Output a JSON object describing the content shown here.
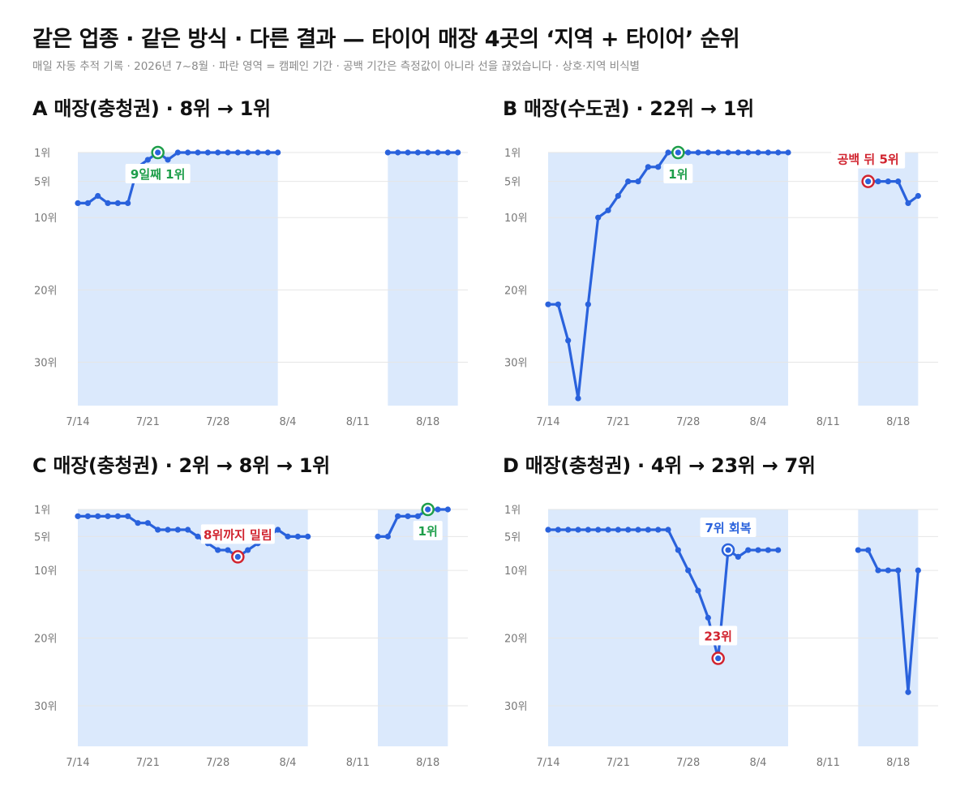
{
  "header": {
    "title": "같은 업종 · 같은 방식 · 다른 결과 — 타이어 매장 4곳의 ‘지역 + 타이어’ 순위",
    "subtitle": "매일 자동 추적 기록 · 2026년 7~8월 · 파란 영역 = 캠페인 기간 · 공백 기간은 측정값이 아니라 선을 끊었습니다 · 상호·지역 비식별"
  },
  "colors": {
    "line": "#2a62dc",
    "campaign": "#dbe9fc",
    "good": "#1e9e4a",
    "bad": "#d1242f",
    "text": "#111111",
    "axis": "#777777"
  },
  "chart_data": [
    {
      "type": "line",
      "title": "A 매장(충청권) · 8위 → 1위",
      "x_ticks": [
        "7/14",
        "7/21",
        "7/28",
        "8/4",
        "8/11",
        "8/18"
      ],
      "y_ticks": [
        "1위",
        "5위",
        "10위",
        "20위",
        "30위"
      ],
      "y_tick_values": [
        1,
        5,
        10,
        20,
        30
      ],
      "y_range": [
        1,
        36
      ],
      "x_range": [
        "7/14",
        "8/22"
      ],
      "campaign_periods": [
        [
          "7/14",
          "8/3"
        ],
        [
          "8/14",
          "8/21"
        ]
      ],
      "segments": [
        [
          [
            "7/14",
            8
          ],
          [
            "7/15",
            8
          ],
          [
            "7/16",
            7
          ],
          [
            "7/17",
            8
          ],
          [
            "7/18",
            8
          ],
          [
            "7/19",
            8
          ],
          [
            "7/20",
            3
          ],
          [
            "7/21",
            2
          ],
          [
            "7/22",
            1
          ],
          [
            "7/23",
            2
          ],
          [
            "7/24",
            1
          ],
          [
            "7/25",
            1
          ],
          [
            "7/26",
            1
          ],
          [
            "7/27",
            1
          ],
          [
            "7/28",
            1
          ],
          [
            "7/29",
            1
          ],
          [
            "7/30",
            1
          ],
          [
            "7/31",
            1
          ],
          [
            "8/1",
            1
          ],
          [
            "8/2",
            1
          ],
          [
            "8/3",
            1
          ]
        ],
        [
          [
            "8/14",
            1
          ],
          [
            "8/15",
            1
          ],
          [
            "8/16",
            1
          ],
          [
            "8/17",
            1
          ],
          [
            "8/18",
            1
          ],
          [
            "8/19",
            1
          ],
          [
            "8/20",
            1
          ],
          [
            "8/21",
            1
          ]
        ]
      ],
      "annotations": [
        {
          "x": "7/22",
          "y": 1,
          "text": "9일째 1위",
          "tone": "good",
          "label_pos": "below"
        }
      ]
    },
    {
      "type": "line",
      "title": "B 매장(수도권) · 22위 → 1위",
      "x_ticks": [
        "7/14",
        "7/21",
        "7/28",
        "8/4",
        "8/11",
        "8/18"
      ],
      "y_ticks": [
        "1위",
        "5위",
        "10위",
        "20위",
        "30위"
      ],
      "y_tick_values": [
        1,
        5,
        10,
        20,
        30
      ],
      "y_range": [
        1,
        36
      ],
      "x_range": [
        "7/14",
        "8/22"
      ],
      "campaign_periods": [
        [
          "7/14",
          "8/7"
        ],
        [
          "8/14",
          "8/20"
        ]
      ],
      "segments": [
        [
          [
            "7/14",
            22
          ],
          [
            "7/15",
            22
          ],
          [
            "7/16",
            27
          ],
          [
            "7/17",
            35
          ],
          [
            "7/18",
            22
          ],
          [
            "7/19",
            10
          ],
          [
            "7/20",
            9
          ],
          [
            "7/21",
            7
          ],
          [
            "7/22",
            5
          ],
          [
            "7/23",
            5
          ],
          [
            "7/24",
            3
          ],
          [
            "7/25",
            3
          ],
          [
            "7/26",
            1
          ],
          [
            "7/27",
            1
          ],
          [
            "7/28",
            1
          ],
          [
            "7/29",
            1
          ],
          [
            "7/30",
            1
          ],
          [
            "7/31",
            1
          ],
          [
            "8/1",
            1
          ],
          [
            "8/2",
            1
          ],
          [
            "8/3",
            1
          ],
          [
            "8/4",
            1
          ],
          [
            "8/5",
            1
          ],
          [
            "8/6",
            1
          ],
          [
            "8/7",
            1
          ]
        ],
        [
          [
            "8/15",
            5
          ],
          [
            "8/16",
            5
          ],
          [
            "8/17",
            5
          ],
          [
            "8/18",
            5
          ],
          [
            "8/19",
            8
          ],
          [
            "8/20",
            7
          ]
        ]
      ],
      "annotations": [
        {
          "x": "7/27",
          "y": 1,
          "text": "1위",
          "tone": "good",
          "label_pos": "below"
        },
        {
          "x": "8/15",
          "y": 5,
          "text": "공백 뒤 5위",
          "tone": "bad",
          "label_pos": "above"
        }
      ]
    },
    {
      "type": "line",
      "title": "C 매장(충청권) · 2위 → 8위 → 1위",
      "x_ticks": [
        "7/14",
        "7/21",
        "7/28",
        "8/4",
        "8/11",
        "8/18"
      ],
      "y_ticks": [
        "1위",
        "5위",
        "10위",
        "20위",
        "30위"
      ],
      "y_tick_values": [
        1,
        5,
        10,
        20,
        30
      ],
      "y_range": [
        1,
        36
      ],
      "x_range": [
        "7/14",
        "8/22"
      ],
      "campaign_periods": [
        [
          "7/14",
          "8/6"
        ],
        [
          "8/13",
          "8/20"
        ]
      ],
      "segments": [
        [
          [
            "7/14",
            2
          ],
          [
            "7/15",
            2
          ],
          [
            "7/16",
            2
          ],
          [
            "7/17",
            2
          ],
          [
            "7/18",
            2
          ],
          [
            "7/19",
            2
          ],
          [
            "7/20",
            3
          ],
          [
            "7/21",
            3
          ],
          [
            "7/22",
            4
          ],
          [
            "7/23",
            4
          ],
          [
            "7/24",
            4
          ],
          [
            "7/25",
            4
          ],
          [
            "7/26",
            5
          ],
          [
            "7/27",
            6
          ],
          [
            "7/28",
            7
          ],
          [
            "7/29",
            7
          ],
          [
            "7/30",
            8
          ],
          [
            "7/31",
            7
          ],
          [
            "8/1",
            6
          ],
          [
            "8/2",
            5
          ],
          [
            "8/3",
            4
          ],
          [
            "8/4",
            5
          ],
          [
            "8/5",
            5
          ],
          [
            "8/6",
            5
          ]
        ],
        [
          [
            "8/13",
            5
          ],
          [
            "8/14",
            5
          ],
          [
            "8/15",
            2
          ],
          [
            "8/16",
            2
          ],
          [
            "8/17",
            2
          ],
          [
            "8/18",
            1
          ],
          [
            "8/19",
            1
          ],
          [
            "8/20",
            1
          ]
        ]
      ],
      "annotations": [
        {
          "x": "7/30",
          "y": 8,
          "text": "8위까지 밀림",
          "tone": "bad",
          "label_pos": "above"
        },
        {
          "x": "8/18",
          "y": 1,
          "text": "1위",
          "tone": "good",
          "label_pos": "below"
        }
      ]
    },
    {
      "type": "line",
      "title": "D 매장(충청권) · 4위 → 23위 → 7위",
      "x_ticks": [
        "7/14",
        "7/21",
        "7/28",
        "8/4",
        "8/11",
        "8/18"
      ],
      "y_ticks": [
        "1위",
        "5위",
        "10위",
        "20위",
        "30위"
      ],
      "y_tick_values": [
        1,
        5,
        10,
        20,
        30
      ],
      "y_range": [
        1,
        36
      ],
      "x_range": [
        "7/14",
        "8/22"
      ],
      "campaign_periods": [
        [
          "7/14",
          "8/7"
        ],
        [
          "8/14",
          "8/20"
        ]
      ],
      "segments": [
        [
          [
            "7/14",
            4
          ],
          [
            "7/15",
            4
          ],
          [
            "7/16",
            4
          ],
          [
            "7/17",
            4
          ],
          [
            "7/18",
            4
          ],
          [
            "7/19",
            4
          ],
          [
            "7/20",
            4
          ],
          [
            "7/21",
            4
          ],
          [
            "7/22",
            4
          ],
          [
            "7/23",
            4
          ],
          [
            "7/24",
            4
          ],
          [
            "7/25",
            4
          ],
          [
            "7/26",
            4
          ],
          [
            "7/27",
            7
          ],
          [
            "7/28",
            10
          ],
          [
            "7/29",
            13
          ],
          [
            "7/30",
            17
          ],
          [
            "7/31",
            23
          ],
          [
            "8/1",
            7
          ],
          [
            "8/2",
            8
          ],
          [
            "8/3",
            7
          ],
          [
            "8/4",
            7
          ],
          [
            "8/5",
            7
          ],
          [
            "8/6",
            7
          ]
        ],
        [
          [
            "8/14",
            7
          ],
          [
            "8/15",
            7
          ],
          [
            "8/16",
            10
          ],
          [
            "8/17",
            10
          ],
          [
            "8/18",
            10
          ],
          [
            "8/19",
            28
          ],
          [
            "8/20",
            10
          ]
        ]
      ],
      "annotations": [
        {
          "x": "7/31",
          "y": 23,
          "text": "23위",
          "tone": "bad",
          "label_pos": "above"
        },
        {
          "x": "8/1",
          "y": 7,
          "text": "7위 회복",
          "tone": "blue",
          "label_pos": "above"
        }
      ]
    }
  ]
}
